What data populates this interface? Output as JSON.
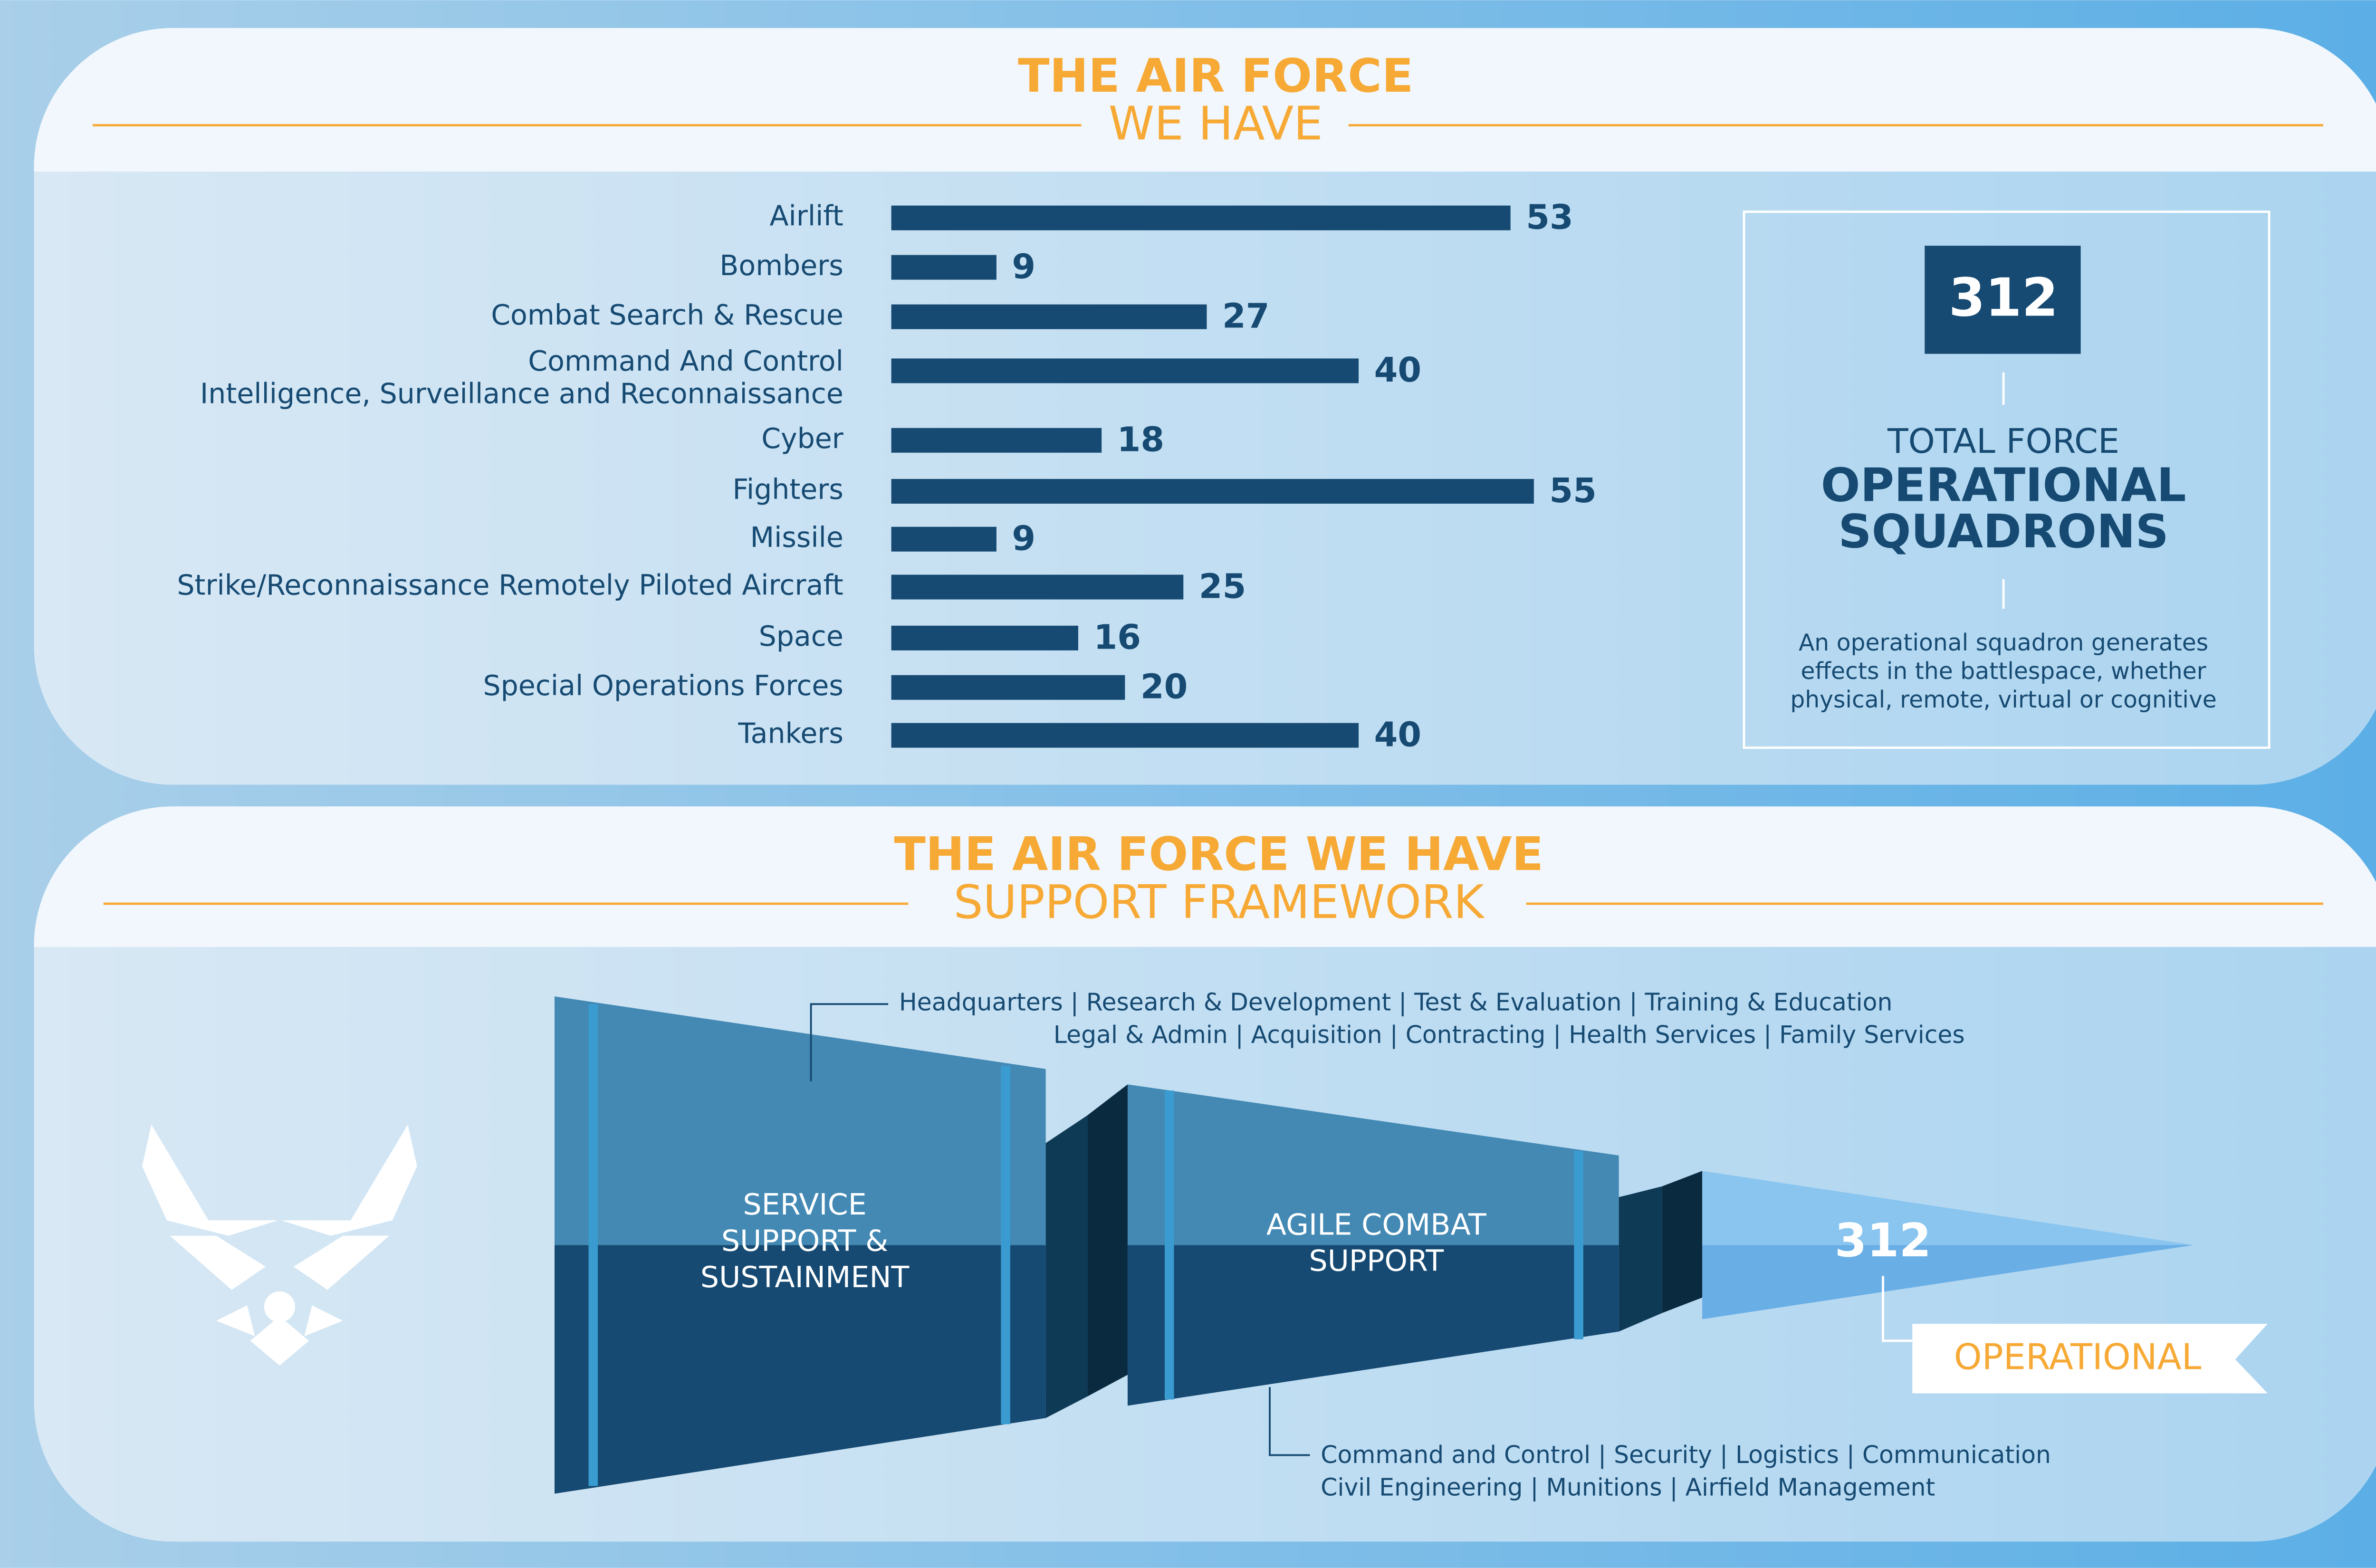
{
  "chart_data": {
    "type": "bar",
    "orientation": "horizontal",
    "title": "THE AIR FORCE",
    "subtitle": "WE HAVE",
    "categories": [
      "Airlift",
      "Bombers",
      "Combat Search & Rescue",
      "Command And Control\nIntelligence, Surveillance and Reconnaissance",
      "Cyber",
      "Fighters",
      "Missile",
      "Strike/Reconnaissance Remotely Piloted Aircraft",
      "Space",
      "Special Operations Forces",
      "Tankers"
    ],
    "values": [
      53,
      9,
      27,
      40,
      18,
      55,
      9,
      25,
      16,
      20,
      40
    ],
    "color": "#164a72"
  },
  "summary": {
    "total": "312",
    "label_top": "TOTAL FORCE",
    "label_main": "OPERATIONAL\nSQUADRONS",
    "description": "An operational squadron generates\neffects in the battlespace, whether\nphysical, remote, virtual or cognitive"
  },
  "framework": {
    "title": "THE AIR FORCE WE HAVE",
    "subtitle": "SUPPORT FRAMEWORK",
    "service_support": "SERVICE\nSUPPORT &\nSUSTAINMENT",
    "agile_combat": "AGILE COMBAT\nSUPPORT",
    "operational_count": "312",
    "operational": "OPERATIONAL",
    "service_items": [
      "Headquarters  |  Research & Development  |  Test & Evaluation  |  Training & Education",
      "Legal & Admin  |  Acquisition  |  Contracting  |   Health Services  |  Family Services"
    ],
    "combat_items": [
      "Command and Control  |  Security  |  Logistics  |  Communication",
      "Civil Engineering  |  Munitions  |  Airfield Management"
    ]
  }
}
